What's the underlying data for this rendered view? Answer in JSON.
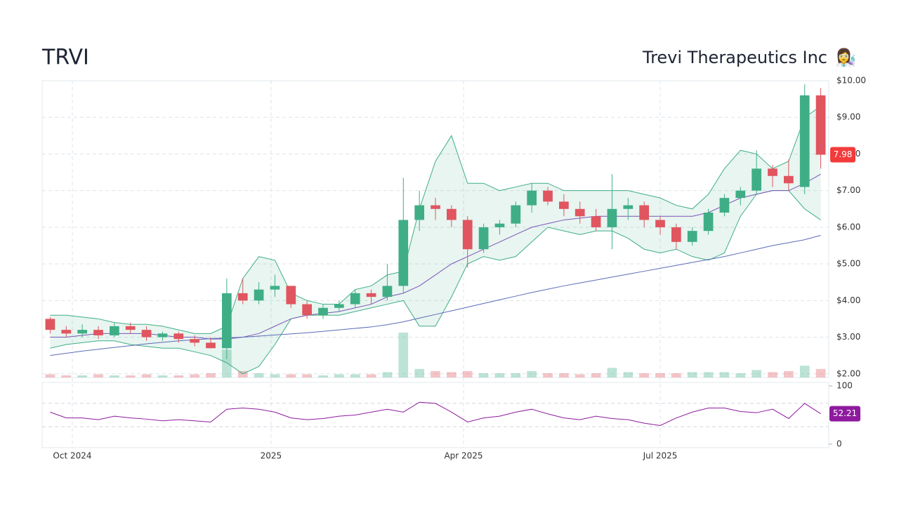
{
  "chart_data": [
    {
      "type": "candlestick",
      "title": "TRVI",
      "subtitle": "Trevi Therapeutics Inc",
      "icon": "👩‍🔬",
      "x": [
        0,
        1,
        2,
        3,
        4,
        5,
        6,
        7,
        8,
        9,
        10,
        11,
        12,
        13,
        14,
        15,
        16,
        17,
        18,
        19,
        20,
        21,
        22,
        23,
        24,
        25,
        26,
        27,
        28,
        29,
        30,
        31,
        32,
        33,
        34,
        35,
        36,
        37,
        38,
        39,
        40,
        41,
        42,
        43,
        44,
        45,
        46,
        47,
        48
      ],
      "open": [
        3.5,
        3.2,
        3.1,
        3.2,
        3.05,
        3.3,
        3.2,
        3.0,
        3.1,
        2.95,
        2.85,
        2.7,
        4.2,
        4.0,
        4.3,
        4.4,
        3.9,
        3.6,
        3.8,
        3.9,
        4.2,
        4.1,
        4.4,
        6.2,
        6.6,
        6.5,
        6.2,
        5.4,
        6.0,
        6.1,
        6.6,
        7.0,
        6.7,
        6.5,
        6.3,
        6.0,
        6.5,
        6.6,
        6.2,
        6.0,
        5.6,
        5.9,
        6.4,
        6.8,
        7.0,
        7.6,
        7.4,
        7.1,
        9.6
      ],
      "high": [
        3.55,
        3.3,
        3.35,
        3.3,
        3.4,
        3.4,
        3.3,
        3.15,
        3.15,
        3.05,
        3.0,
        4.6,
        4.6,
        4.5,
        4.7,
        4.4,
        4.0,
        3.9,
        4.0,
        4.3,
        4.3,
        5.0,
        7.35,
        7.0,
        6.8,
        6.6,
        6.3,
        6.1,
        6.2,
        6.7,
        7.2,
        7.1,
        6.9,
        6.7,
        6.5,
        7.45,
        6.8,
        6.7,
        6.3,
        6.1,
        6.0,
        6.5,
        6.9,
        7.1,
        8.1,
        7.7,
        7.85,
        9.9,
        9.8
      ],
      "low": [
        3.1,
        3.0,
        3.0,
        2.95,
        3.0,
        3.1,
        2.9,
        2.9,
        2.85,
        2.75,
        2.7,
        2.4,
        3.9,
        3.9,
        4.1,
        3.8,
        3.5,
        3.5,
        3.7,
        3.8,
        3.9,
        4.0,
        4.2,
        5.9,
        6.2,
        6.0,
        4.9,
        5.3,
        5.8,
        6.0,
        6.4,
        6.6,
        6.3,
        6.1,
        5.9,
        5.4,
        6.2,
        6.0,
        5.8,
        5.4,
        5.5,
        5.8,
        6.3,
        6.6,
        6.9,
        7.1,
        7.0,
        6.9,
        7.6
      ],
      "close": [
        3.2,
        3.1,
        3.2,
        3.05,
        3.3,
        3.2,
        3.0,
        3.1,
        2.95,
        2.85,
        2.7,
        4.2,
        4.0,
        4.3,
        4.4,
        3.9,
        3.6,
        3.8,
        3.9,
        4.2,
        4.1,
        4.4,
        6.2,
        6.6,
        6.5,
        6.2,
        5.4,
        6.0,
        6.1,
        6.6,
        7.0,
        6.7,
        6.5,
        6.3,
        6.0,
        6.5,
        6.6,
        6.2,
        6.0,
        5.6,
        5.9,
        6.4,
        6.8,
        7.0,
        7.6,
        7.4,
        7.2,
        9.6,
        7.98
      ],
      "volume": [
        0.3,
        0.2,
        0.2,
        0.3,
        0.2,
        0.2,
        0.3,
        0.2,
        0.2,
        0.3,
        0.4,
        2.6,
        0.6,
        0.4,
        0.3,
        0.3,
        0.3,
        0.2,
        0.3,
        0.3,
        0.3,
        0.5,
        4.2,
        0.8,
        0.6,
        0.5,
        0.6,
        0.4,
        0.4,
        0.4,
        0.6,
        0.4,
        0.4,
        0.3,
        0.4,
        0.9,
        0.5,
        0.4,
        0.4,
        0.4,
        0.5,
        0.5,
        0.5,
        0.4,
        0.7,
        0.5,
        0.6,
        1.1,
        0.8
      ],
      "up_color": "#3fae86",
      "down_color": "#e0555f",
      "bands": {
        "color": "#3fae86",
        "upper": [
          3.6,
          3.6,
          3.55,
          3.5,
          3.4,
          3.35,
          3.35,
          3.3,
          3.2,
          3.1,
          3.1,
          3.3,
          4.6,
          5.2,
          5.1,
          4.2,
          4.0,
          3.9,
          3.9,
          4.3,
          4.4,
          4.7,
          4.8,
          6.5,
          7.8,
          8.5,
          7.2,
          7.2,
          7.0,
          7.1,
          7.2,
          7.2,
          7.0,
          7.0,
          7.0,
          7.0,
          7.0,
          6.9,
          6.8,
          6.6,
          6.5,
          6.9,
          7.6,
          8.1,
          8.0,
          7.6,
          7.8,
          9.0,
          9.3
        ],
        "lower": [
          2.7,
          2.8,
          2.85,
          2.9,
          2.9,
          2.8,
          2.75,
          2.7,
          2.7,
          2.6,
          2.5,
          2.3,
          2.0,
          2.2,
          2.8,
          3.5,
          3.6,
          3.6,
          3.6,
          3.7,
          3.8,
          3.9,
          4.0,
          3.3,
          3.3,
          4.1,
          5.0,
          5.2,
          5.1,
          5.2,
          5.6,
          6.0,
          5.9,
          5.8,
          5.9,
          5.9,
          5.7,
          5.4,
          5.3,
          5.4,
          5.2,
          5.1,
          5.3,
          6.3,
          6.9,
          7.0,
          7.0,
          6.5,
          6.2
        ]
      },
      "series": [
        {
          "color": "#7b55b8",
          "values": [
            3.0,
            3.0,
            3.05,
            3.1,
            3.1,
            3.1,
            3.1,
            3.05,
            3.0,
            3.0,
            2.95,
            2.95,
            3.0,
            3.1,
            3.3,
            3.5,
            3.6,
            3.65,
            3.7,
            3.8,
            3.9,
            4.1,
            4.2,
            4.4,
            4.7,
            5.0,
            5.2,
            5.4,
            5.6,
            5.8,
            6.0,
            6.1,
            6.2,
            6.25,
            6.3,
            6.3,
            6.3,
            6.3,
            6.3,
            6.3,
            6.3,
            6.4,
            6.6,
            6.8,
            6.9,
            7.0,
            7.0,
            7.2,
            7.45
          ]
        },
        {
          "color": "#5b6bb8",
          "values": [
            2.5,
            2.56,
            2.62,
            2.67,
            2.72,
            2.77,
            2.82,
            2.86,
            2.9,
            2.93,
            2.96,
            2.98,
            3.0,
            3.03,
            3.06,
            3.09,
            3.12,
            3.16,
            3.2,
            3.24,
            3.28,
            3.34,
            3.42,
            3.52,
            3.62,
            3.72,
            3.82,
            3.92,
            4.02,
            4.12,
            4.22,
            4.31,
            4.4,
            4.48,
            4.56,
            4.64,
            4.72,
            4.8,
            4.88,
            4.96,
            5.04,
            5.12,
            5.2,
            5.3,
            5.4,
            5.5,
            5.58,
            5.66,
            5.78
          ]
        }
      ],
      "xlim": [
        -0.5,
        48.5
      ],
      "xticks": [
        {
          "value": 1.38,
          "label": "Oct 2024"
        },
        {
          "value": 13.76,
          "label": "2025"
        },
        {
          "value": 25.75,
          "label": "Apr 2025"
        },
        {
          "value": 38.0,
          "label": "Jul 2025"
        }
      ],
      "ylim": [
        1.9,
        10.0
      ],
      "yticks": [
        {
          "value": 2,
          "label": "$2.00"
        },
        {
          "value": 3,
          "label": "$3.00"
        },
        {
          "value": 4,
          "label": "$4.00"
        },
        {
          "value": 5,
          "label": "$5.00"
        },
        {
          "value": 6,
          "label": "$6.00"
        },
        {
          "value": 7,
          "label": "$7.00"
        },
        {
          "value": 8,
          "label": "$8.00"
        },
        {
          "value": 9,
          "label": "$9.00"
        },
        {
          "value": 10,
          "label": "$10.00"
        }
      ],
      "grid": true
    },
    {
      "type": "line",
      "color": "#8e1a9e",
      "values": [
        55,
        45,
        45,
        42,
        48,
        45,
        43,
        40,
        42,
        40,
        38,
        60,
        62,
        60,
        55,
        45,
        42,
        44,
        48,
        50,
        55,
        60,
        55,
        72,
        70,
        55,
        38,
        45,
        48,
        55,
        60,
        52,
        45,
        42,
        48,
        44,
        42,
        36,
        32,
        45,
        55,
        62,
        62,
        56,
        54,
        60,
        44,
        70,
        52.21
      ],
      "ylim": [
        -6,
        106
      ],
      "yticks": [
        0,
        100
      ],
      "grid_lines": [
        30,
        70
      ]
    }
  ]
}
